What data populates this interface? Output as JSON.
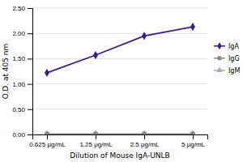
{
  "chart_data": {
    "type": "line",
    "xlabel": "Dilution of Mouse IgA-UNLB",
    "ylabel": "O.D. at 405 nm",
    "categories": [
      "0.625 μg/mL",
      "1.25 μg/mL",
      "2.5 μg/mL",
      "5 μg/mL"
    ],
    "series": [
      {
        "name": "IgA",
        "color": "#3d1a8e",
        "marker": "diamond",
        "values": [
          1.22,
          1.57,
          1.95,
          2.13
        ]
      },
      {
        "name": "IgG",
        "color": "#888888",
        "marker": "circle",
        "values": [
          0.01,
          0.01,
          0.01,
          0.01
        ]
      },
      {
        "name": "IgM",
        "color": "#aaaaaa",
        "marker": "triangle",
        "values": [
          0.01,
          0.01,
          0.01,
          0.01
        ]
      }
    ],
    "ylim": [
      0.0,
      2.5
    ],
    "yticks": [
      {
        "value": 0.0,
        "label": "0.00"
      },
      {
        "value": 0.5,
        "label": "0.50"
      },
      {
        "value": 1.0,
        "label": "1.00"
      },
      {
        "value": 1.5,
        "label": "1.50"
      },
      {
        "value": 2.0,
        "label": "2.00"
      },
      {
        "value": 2.5,
        "label": "2.50"
      }
    ],
    "grid": true,
    "legend": "right"
  }
}
